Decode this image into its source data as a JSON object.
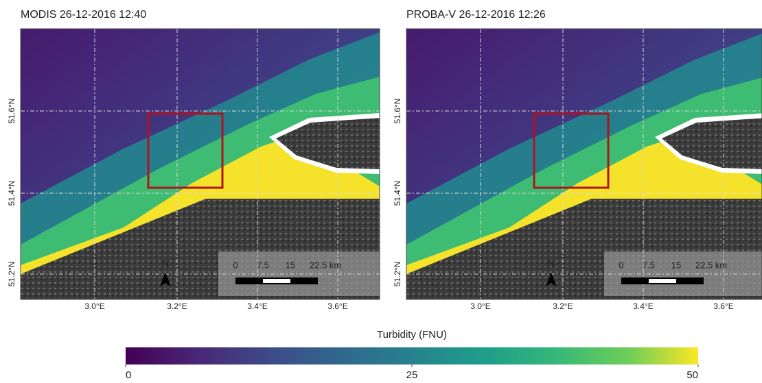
{
  "panels": [
    {
      "title": "MODIS 26-12-2016 12:40",
      "lat_labels": [
        "51.6°N",
        "51.4°N",
        "51.2°N"
      ],
      "lon_labels": [
        "3.0°E",
        "3.2°E",
        "3.4°E",
        "3.6°E"
      ],
      "scale_labels": [
        "0",
        "7.5",
        "15",
        "22.5 km"
      ],
      "north": "N"
    },
    {
      "title": "PROBA-V 26-12-2016 12:26",
      "lat_labels": [
        "51.6°N",
        "51.4°N",
        "51.2°N"
      ],
      "lon_labels": [
        "3.0°E",
        "3.2°E",
        "3.4°E",
        "3.6°E"
      ],
      "scale_labels": [
        "0",
        "7.5",
        "15",
        "22.5 km"
      ],
      "north": "N"
    }
  ],
  "colorbar": {
    "label": "Turbidity (FNU)",
    "range": [
      0,
      50
    ],
    "ticks": [
      0,
      25,
      50
    ]
  }
}
